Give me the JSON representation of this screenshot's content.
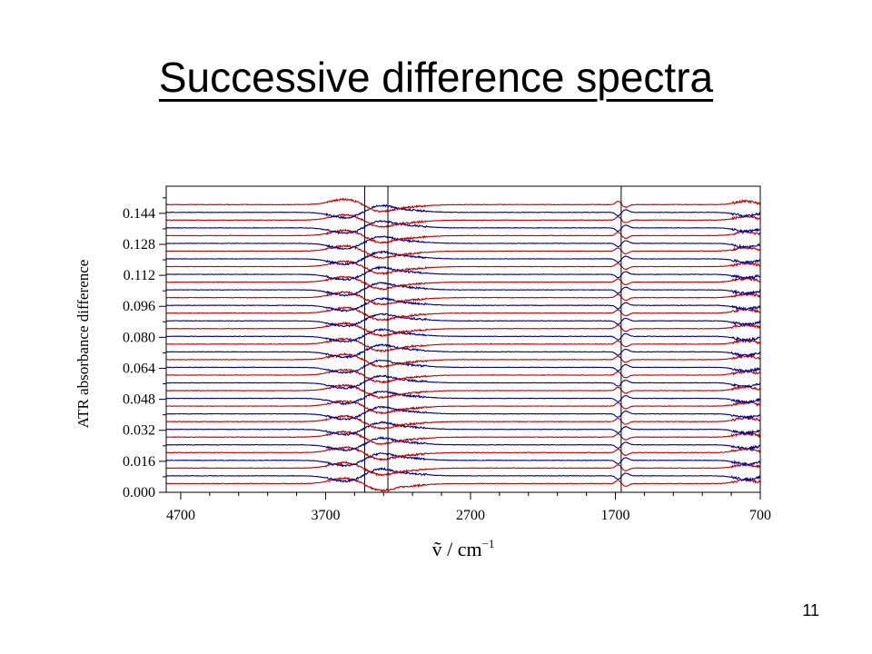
{
  "slide": {
    "title": "Successive difference spectra",
    "page_number": "11"
  },
  "chart_data": {
    "type": "line",
    "title": "Successive difference spectra",
    "ylabel": "ATR absorbance difference",
    "xlabel_symbol": "ṽ",
    "xlabel_unit": " / cm",
    "xlabel_exponent": "−1",
    "xlim": [
      4800,
      700
    ],
    "x_reversed": true,
    "ylim": [
      0.0,
      0.158
    ],
    "x_ticks": [
      4700,
      3700,
      2700,
      1700,
      700
    ],
    "x_tick_labels": [
      "4700",
      "3700",
      "2700",
      "1700",
      "700"
    ],
    "y_ticks": [
      0.0,
      0.016,
      0.032,
      0.048,
      0.064,
      0.08,
      0.096,
      0.112,
      0.128,
      0.144
    ],
    "y_tick_labels": [
      "0.000",
      "0.016",
      "0.032",
      "0.048",
      "0.064",
      "0.080",
      "0.096",
      "0.112",
      "0.128",
      "0.144"
    ],
    "vertical_lines": [
      3430,
      3270,
      1660
    ],
    "series_colors": [
      "#c00000",
      "#00008b"
    ],
    "num_spectra": 37,
    "offset_step": 0.004,
    "spectrum_start_x": 4800,
    "spectrum_end_x": 700,
    "grid": false,
    "legend": "none"
  }
}
